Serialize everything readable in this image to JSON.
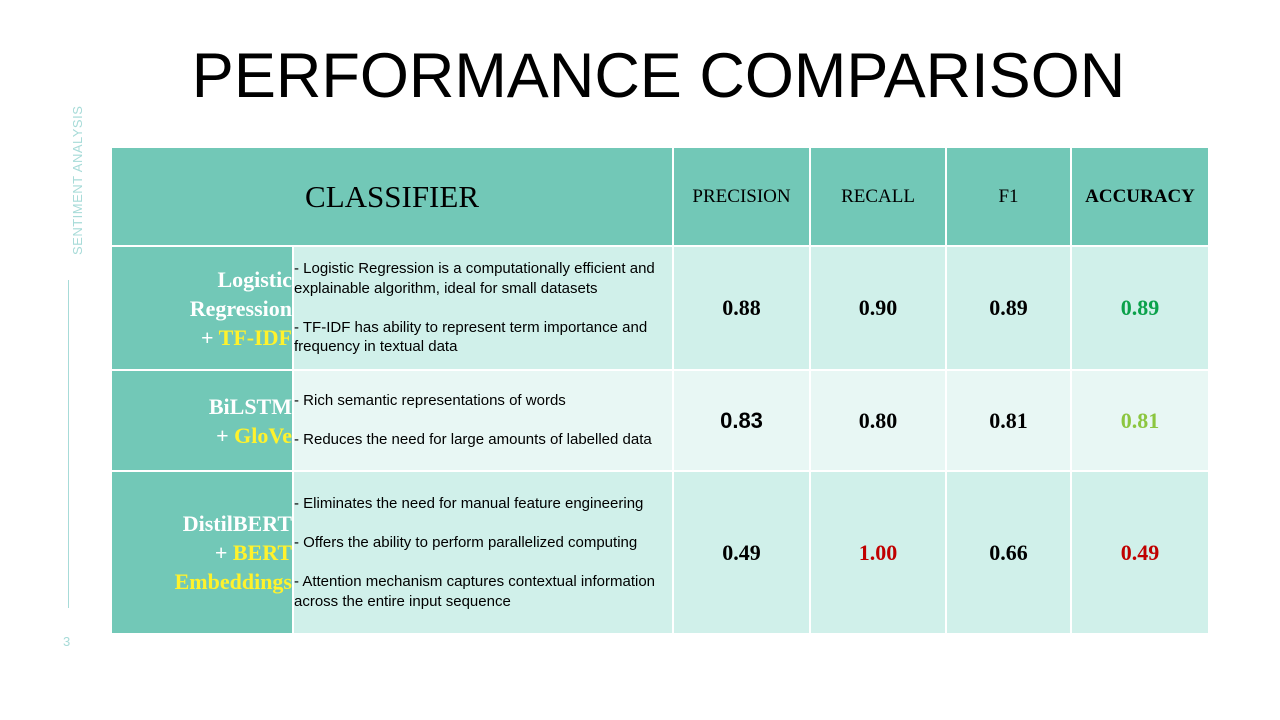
{
  "slide": {
    "title": "PERFORMANCE COMPARISON",
    "side_label": "SENTIMENT ANALYSIS",
    "page_number": "3"
  },
  "table": {
    "headers": {
      "classifier": "CLASSIFIER",
      "precision": "PRECISION",
      "recall": "RECALL",
      "f1": "F1",
      "accuracy": "ACCURACY"
    },
    "rows": [
      {
        "name_line1": "Logistic",
        "name_line2": "Regression",
        "name_plus": "+ ",
        "name_embed": "TF-IDF",
        "desc": [
          "- Logistic Regression is a computationally efficient and explainable algorithm, ideal for small datasets",
          "- TF-IDF has ability to represent term importance and frequency in textual data"
        ],
        "precision": "0.88",
        "recall": "0.90",
        "f1": "0.89",
        "accuracy": "0.89"
      },
      {
        "name_line1": "BiLSTM",
        "name_plus": "+ ",
        "name_embed": "GloVe",
        "desc": [
          "- Rich semantic representations of words",
          "- Reduces the need for large amounts of labelled data"
        ],
        "precision": "0.83",
        "recall": "0.80",
        "f1": "0.81",
        "accuracy": "0.81"
      },
      {
        "name_line1": "DistilBERT",
        "name_plus": "+ ",
        "name_embed": "BERT",
        "name_embed2": "Embeddings",
        "desc": [
          "- Eliminates the need for manual feature engineering",
          "- Offers the ability to perform parallelized computing",
          "- Attention mechanism captures contextual information across the entire input sequence"
        ],
        "precision": "0.49",
        "recall": "1.00",
        "f1": "0.66",
        "accuracy": "0.49"
      }
    ]
  },
  "colors": {
    "header_bg": "#72c8b7",
    "accuracy_best": "#0aa14a",
    "accuracy_good": "#8cc63f",
    "bad": "#c00000",
    "highlight_yellow": "#fff22c"
  }
}
